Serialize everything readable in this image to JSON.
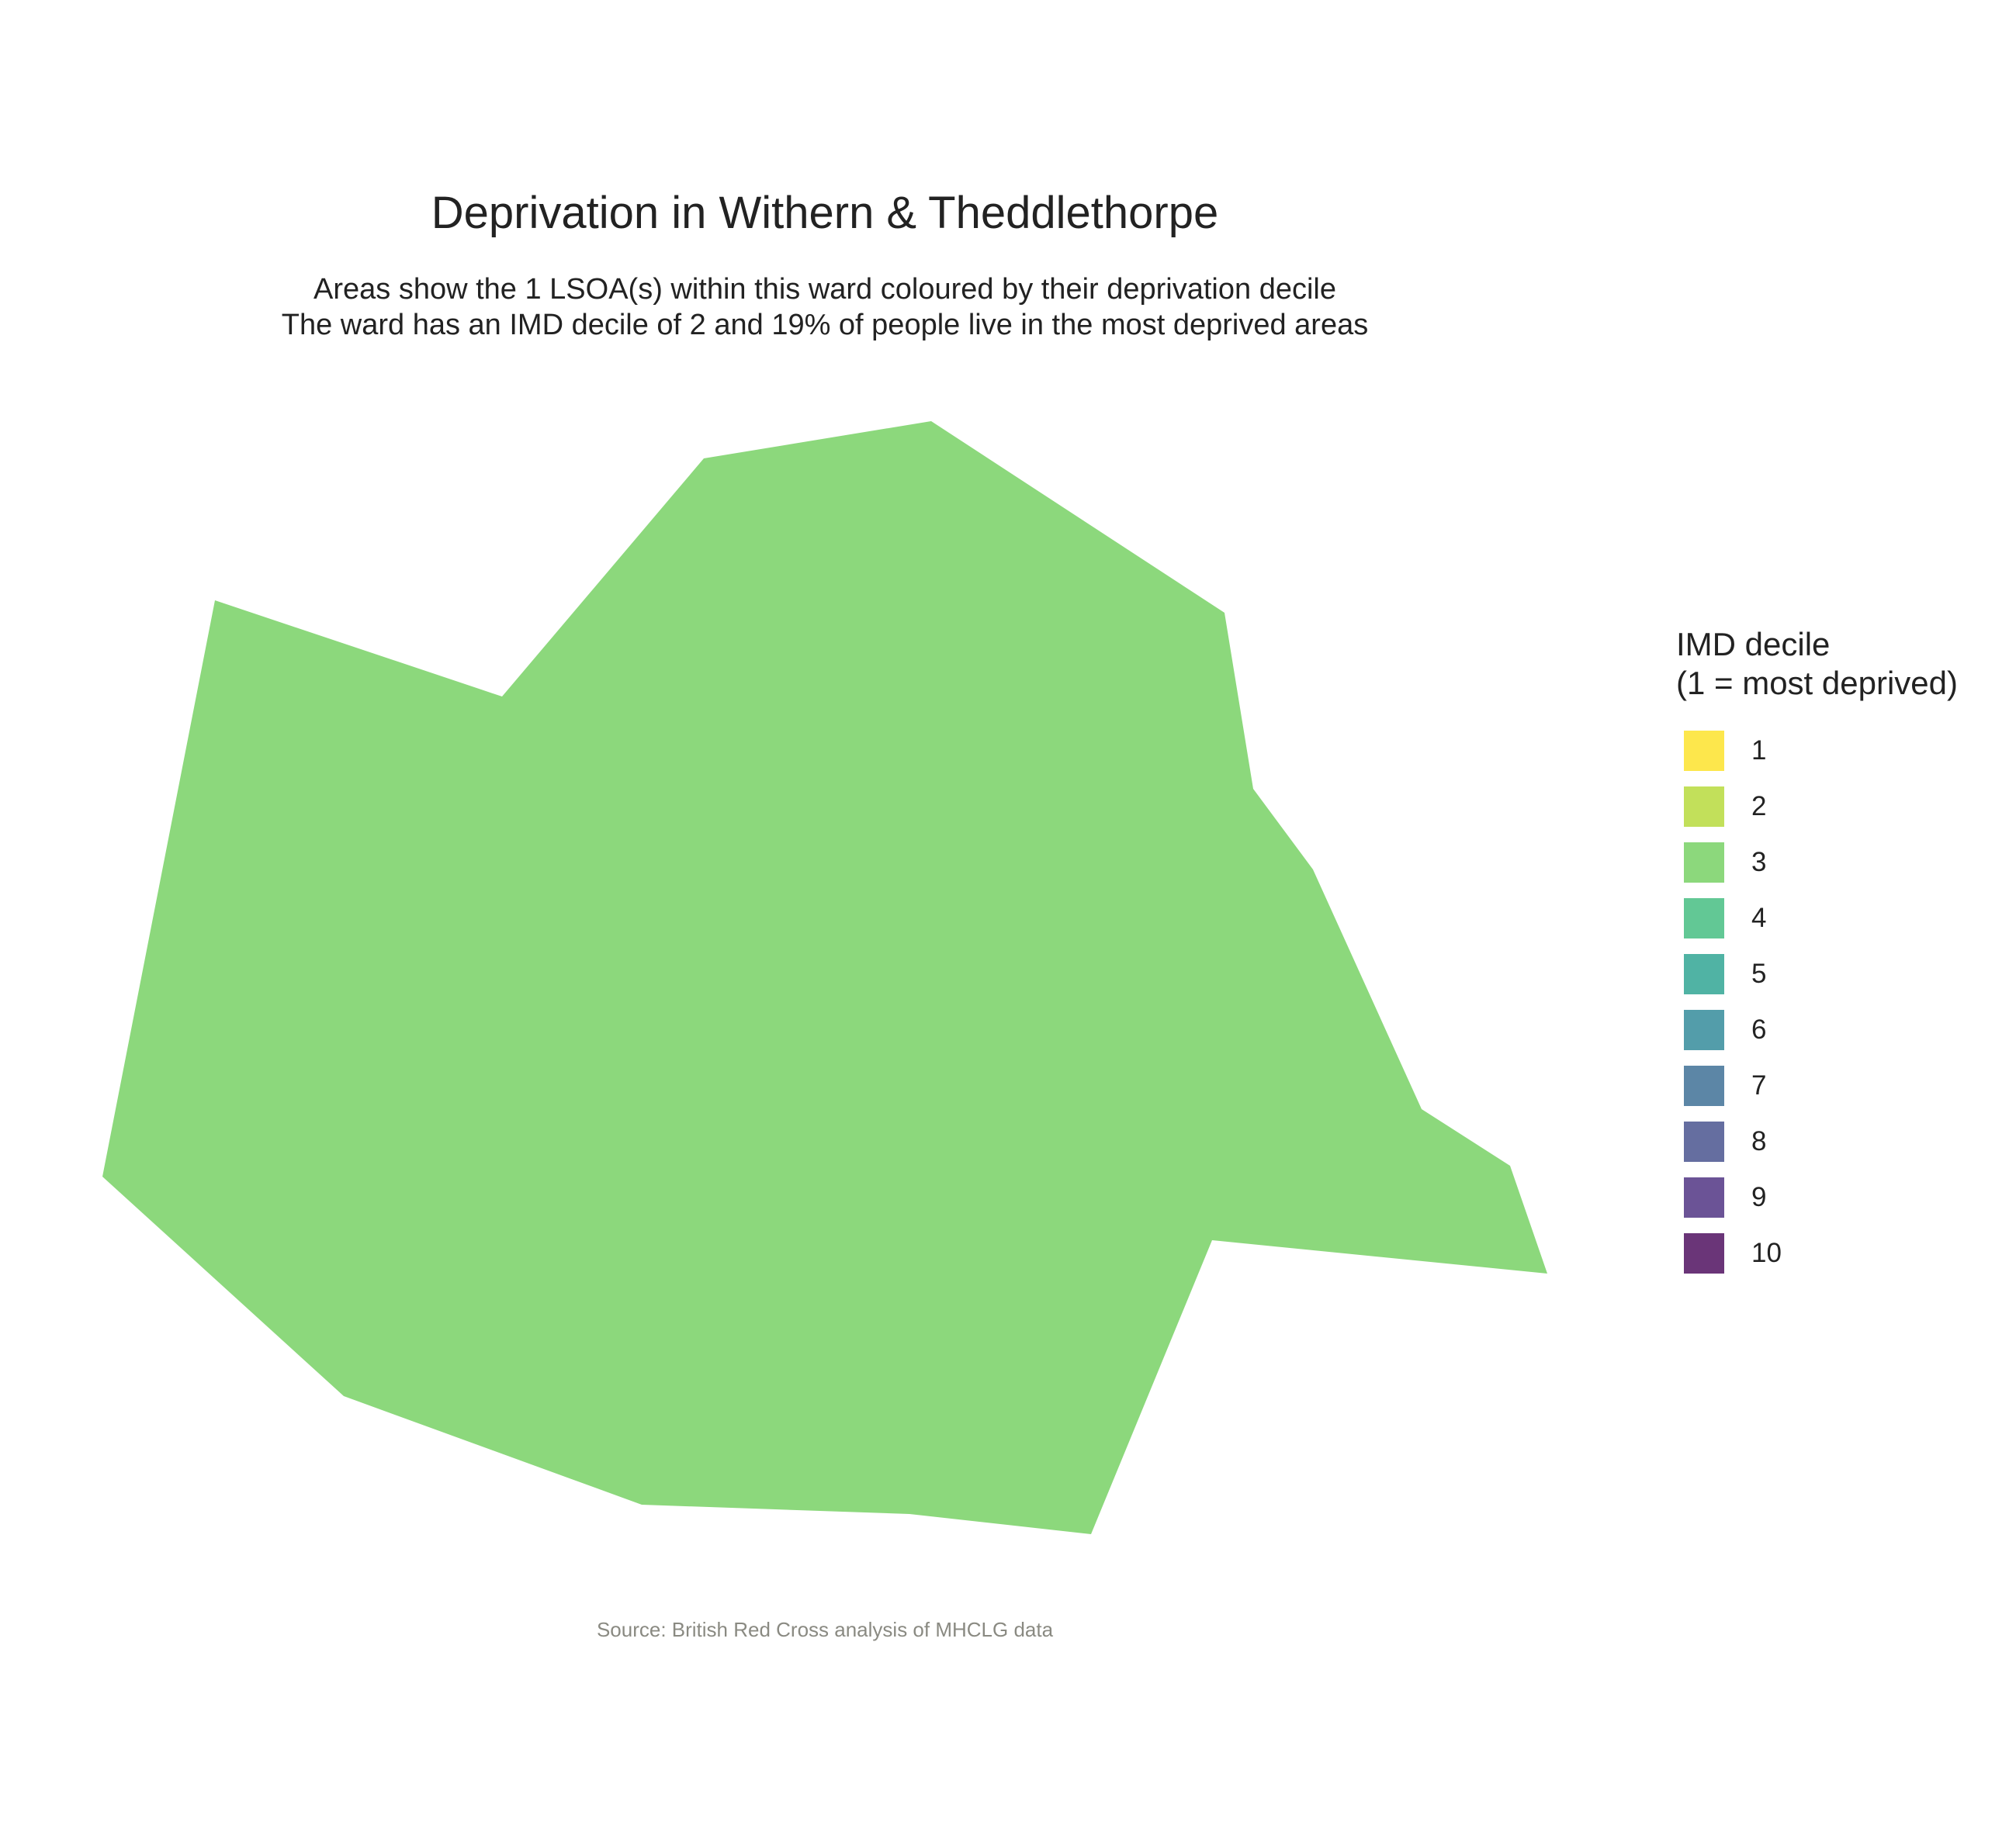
{
  "header": {
    "title": "Deprivation in Withern & Theddlethorpe",
    "subtitle_lines": [
      "Areas show the 1 LSOA(s) within this ward coloured by their deprivation decile",
      "The ward has an IMD decile of 2 and 19% of people live in the most deprived areas"
    ]
  },
  "map": {
    "regions": [
      {
        "decile": 3,
        "color": "#8CD87C"
      }
    ]
  },
  "legend": {
    "title_lines": [
      "IMD decile",
      "(1 = most deprived)"
    ],
    "items": [
      {
        "label": "1",
        "color": "#FDE74C"
      },
      {
        "label": "2",
        "color": "#C2E05A"
      },
      {
        "label": "3",
        "color": "#8CD87C"
      },
      {
        "label": "4",
        "color": "#62C895"
      },
      {
        "label": "5",
        "color": "#50B3A4"
      },
      {
        "label": "6",
        "color": "#539DAA"
      },
      {
        "label": "7",
        "color": "#5C86A6"
      },
      {
        "label": "8",
        "color": "#656EA0"
      },
      {
        "label": "9",
        "color": "#6B5396"
      },
      {
        "label": "10",
        "color": "#6A3578"
      }
    ]
  },
  "caption": "Source: British Red Cross analysis of MHCLG data"
}
